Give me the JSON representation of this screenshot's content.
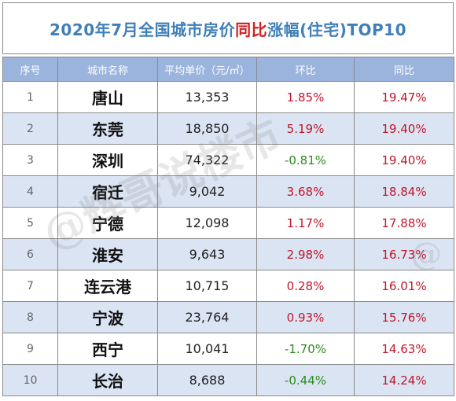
{
  "title": {
    "prefix": "2020年7月全国城市房价",
    "highlight": "同比",
    "suffix": "涨幅(住宅)TOP10"
  },
  "table": {
    "headers": [
      "序号",
      "城市名称",
      "平均单价（元/㎡）",
      "环比",
      "同比"
    ],
    "rows": [
      {
        "rank": "1",
        "city": "唐山",
        "price": "13,353",
        "mom": "1.85%",
        "yoy": "19.47%"
      },
      {
        "rank": "2",
        "city": "东莞",
        "price": "18,850",
        "mom": "5.19%",
        "yoy": "19.40%"
      },
      {
        "rank": "3",
        "city": "深圳",
        "price": "74,322",
        "mom": "-0.81%",
        "yoy": "19.40%"
      },
      {
        "rank": "4",
        "city": "宿迁",
        "price": "9,042",
        "mom": "3.68%",
        "yoy": "18.84%"
      },
      {
        "rank": "5",
        "city": "宁德",
        "price": "12,098",
        "mom": "1.17%",
        "yoy": "17.88%"
      },
      {
        "rank": "6",
        "city": "淮安",
        "price": "9,643",
        "mom": "2.98%",
        "yoy": "16.73%"
      },
      {
        "rank": "7",
        "city": "连云港",
        "price": "10,715",
        "mom": "0.28%",
        "yoy": "16.01%"
      },
      {
        "rank": "8",
        "city": "宁波",
        "price": "23,764",
        "mom": "0.93%",
        "yoy": "15.76%"
      },
      {
        "rank": "9",
        "city": "西宁",
        "price": "10,041",
        "mom": "-1.70%",
        "yoy": "14.63%"
      },
      {
        "rank": "10",
        "city": "长治",
        "price": "8,688",
        "mom": "-0.44%",
        "yoy": "14.24%"
      }
    ]
  },
  "watermark": {
    "main": "@辉哥说楼市",
    "edge": "@"
  },
  "colors": {
    "title": "#3f7fb9",
    "title_highlight": "#d02020",
    "header_bg": "#9bb4dd",
    "stripe_bg": "#dbe4f3",
    "positive": "#c0182a",
    "negative": "#2e8b1f"
  }
}
